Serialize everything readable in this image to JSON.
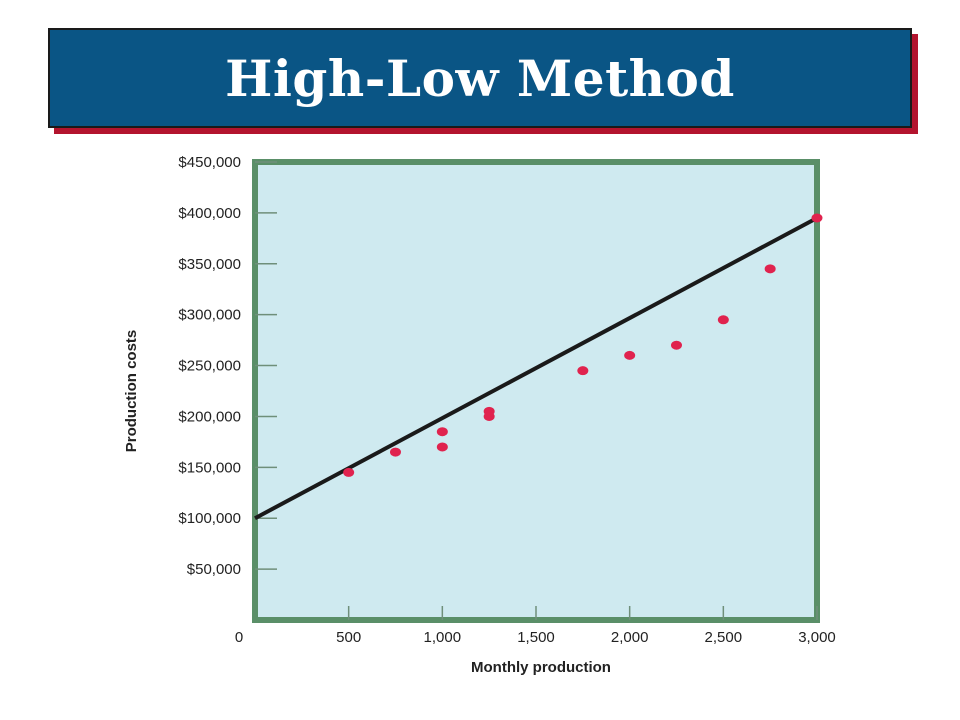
{
  "header": {
    "title": "High-Low Method"
  },
  "chart_data": {
    "type": "scatter",
    "title": "High-Low Method",
    "xlabel": "Monthly production",
    "ylabel": "Production costs",
    "xlim": [
      0,
      3000
    ],
    "ylim": [
      0,
      450000
    ],
    "x_ticks": [
      "0",
      "500",
      "1,000",
      "1,500",
      "2,000",
      "2,500",
      "3,000"
    ],
    "x_tick_values": [
      0,
      500,
      1000,
      1500,
      2000,
      2500,
      3000
    ],
    "y_ticks": [
      "$50,000",
      "$100,000",
      "$150,000",
      "$200,000",
      "$250,000",
      "$300,000",
      "$350,000",
      "$400,000",
      "$450,000"
    ],
    "y_tick_values": [
      50000,
      100000,
      150000,
      200000,
      250000,
      300000,
      350000,
      400000,
      450000
    ],
    "points": [
      {
        "x": 500,
        "y": 145000
      },
      {
        "x": 750,
        "y": 165000
      },
      {
        "x": 1000,
        "y": 185000
      },
      {
        "x": 1000,
        "y": 170000
      },
      {
        "x": 1250,
        "y": 205000
      },
      {
        "x": 1250,
        "y": 200000
      },
      {
        "x": 1750,
        "y": 245000
      },
      {
        "x": 2000,
        "y": 260000
      },
      {
        "x": 2250,
        "y": 270000
      },
      {
        "x": 2500,
        "y": 295000
      },
      {
        "x": 2750,
        "y": 345000
      },
      {
        "x": 3000,
        "y": 395000
      }
    ],
    "line": {
      "x": [
        0,
        3000
      ],
      "y": [
        100000,
        395000
      ]
    },
    "grid": false,
    "colors": {
      "plot_background": "#cfeaf0",
      "plot_border": "#5a8f68",
      "points": "#e0234e",
      "line": "#1a1a1a",
      "banner": "#0a5585",
      "banner_shadow": "#b3142e"
    }
  }
}
